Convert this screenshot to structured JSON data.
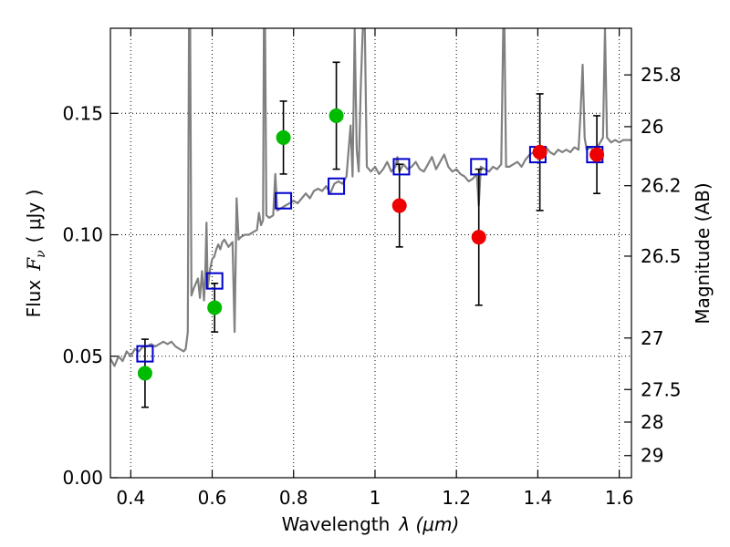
{
  "chart_data": {
    "type": "scatter",
    "xlabel_text": "Wavelength",
    "xlabel_math": "λ (μm)",
    "ylabel_text": "Flux",
    "ylabel_math": "F",
    "ylabel_sub": "ν",
    "ylabel_units": "( μJy )",
    "ylabel_right": "Magnitude (AB)",
    "xlim": [
      0.35,
      1.63
    ],
    "ylim": [
      0.0,
      0.185
    ],
    "grid": true,
    "x_ticks": [
      {
        "v": 0.4,
        "label": "0.4"
      },
      {
        "v": 0.6,
        "label": "0.6"
      },
      {
        "v": 0.8,
        "label": "0.8"
      },
      {
        "v": 1.0,
        "label": "1"
      },
      {
        "v": 1.2,
        "label": "1.2"
      },
      {
        "v": 1.4,
        "label": "1.4"
      },
      {
        "v": 1.6,
        "label": "1.6"
      }
    ],
    "y_ticks": [
      {
        "v": 0.0,
        "label": "0.00"
      },
      {
        "v": 0.05,
        "label": "0.05"
      },
      {
        "v": 0.1,
        "label": "0.10"
      },
      {
        "v": 0.15,
        "label": "0.15"
      }
    ],
    "mag_ticks": [
      {
        "flux": 0.1658,
        "label": "25.8"
      },
      {
        "flux": 0.1445,
        "label": "26"
      },
      {
        "flux": 0.1202,
        "label": "26.2"
      },
      {
        "flux": 0.0912,
        "label": "26.5"
      },
      {
        "flux": 0.0575,
        "label": "27"
      },
      {
        "flux": 0.0363,
        "label": "27.5"
      },
      {
        "flux": 0.0229,
        "label": "28"
      },
      {
        "flux": 0.0091,
        "label": "29"
      }
    ],
    "colors": {
      "spectrum": "#808080",
      "model_box": "#0000cc",
      "green": "#00bb00",
      "red": "#ee0000",
      "errorbar": "#000000"
    },
    "observed": [
      {
        "x": 0.435,
        "y": 0.043,
        "err": 0.014,
        "color": "green"
      },
      {
        "x": 0.606,
        "y": 0.07,
        "err": 0.01,
        "color": "green"
      },
      {
        "x": 0.775,
        "y": 0.14,
        "err": 0.015,
        "color": "green"
      },
      {
        "x": 0.905,
        "y": 0.149,
        "err": 0.022,
        "color": "green"
      },
      {
        "x": 1.06,
        "y": 0.112,
        "err": 0.017,
        "color": "red"
      },
      {
        "x": 1.255,
        "y": 0.099,
        "err": 0.028,
        "color": "red"
      },
      {
        "x": 1.405,
        "y": 0.134,
        "err": 0.024,
        "color": "red"
      },
      {
        "x": 1.545,
        "y": 0.133,
        "err": 0.016,
        "color": "red"
      }
    ],
    "model_photometry": [
      {
        "x": 0.435,
        "y": 0.051
      },
      {
        "x": 0.606,
        "y": 0.081
      },
      {
        "x": 0.775,
        "y": 0.114
      },
      {
        "x": 0.905,
        "y": 0.12
      },
      {
        "x": 1.065,
        "y": 0.128
      },
      {
        "x": 1.255,
        "y": 0.128
      },
      {
        "x": 1.4,
        "y": 0.133
      },
      {
        "x": 1.54,
        "y": 0.133
      }
    ],
    "spectrum": [
      [
        0.35,
        0.049
      ],
      [
        0.36,
        0.046
      ],
      [
        0.37,
        0.05
      ],
      [
        0.38,
        0.048
      ],
      [
        0.39,
        0.052
      ],
      [
        0.4,
        0.05
      ],
      [
        0.41,
        0.053
      ],
      [
        0.42,
        0.052
      ],
      [
        0.43,
        0.054
      ],
      [
        0.44,
        0.054
      ],
      [
        0.45,
        0.055
      ],
      [
        0.46,
        0.054
      ],
      [
        0.47,
        0.055
      ],
      [
        0.48,
        0.056
      ],
      [
        0.49,
        0.055
      ],
      [
        0.5,
        0.056
      ],
      [
        0.51,
        0.054
      ],
      [
        0.52,
        0.053
      ],
      [
        0.53,
        0.052
      ],
      [
        0.535,
        0.053
      ],
      [
        0.54,
        0.06
      ],
      [
        0.543,
        0.185
      ],
      [
        0.546,
        0.185
      ],
      [
        0.549,
        0.075
      ],
      [
        0.555,
        0.078
      ],
      [
        0.56,
        0.08
      ],
      [
        0.565,
        0.082
      ],
      [
        0.57,
        0.074
      ],
      [
        0.575,
        0.085
      ],
      [
        0.58,
        0.073
      ],
      [
        0.583,
        0.083
      ],
      [
        0.586,
        0.105
      ],
      [
        0.589,
        0.078
      ],
      [
        0.595,
        0.086
      ],
      [
        0.6,
        0.09
      ],
      [
        0.605,
        0.091
      ],
      [
        0.61,
        0.094
      ],
      [
        0.615,
        0.096
      ],
      [
        0.62,
        0.094
      ],
      [
        0.625,
        0.097
      ],
      [
        0.63,
        0.098
      ],
      [
        0.64,
        0.095
      ],
      [
        0.65,
        0.097
      ],
      [
        0.655,
        0.06
      ],
      [
        0.66,
        0.115
      ],
      [
        0.665,
        0.098
      ],
      [
        0.67,
        0.099
      ],
      [
        0.68,
        0.1
      ],
      [
        0.69,
        0.1
      ],
      [
        0.7,
        0.101
      ],
      [
        0.71,
        0.102
      ],
      [
        0.715,
        0.109
      ],
      [
        0.72,
        0.104
      ],
      [
        0.725,
        0.106
      ],
      [
        0.727,
        0.185
      ],
      [
        0.73,
        0.185
      ],
      [
        0.733,
        0.108
      ],
      [
        0.74,
        0.107
      ],
      [
        0.75,
        0.108
      ],
      [
        0.755,
        0.125
      ],
      [
        0.76,
        0.11
      ],
      [
        0.77,
        0.111
      ],
      [
        0.78,
        0.112
      ],
      [
        0.79,
        0.113
      ],
      [
        0.8,
        0.114
      ],
      [
        0.81,
        0.113
      ],
      [
        0.82,
        0.115
      ],
      [
        0.83,
        0.117
      ],
      [
        0.84,
        0.115
      ],
      [
        0.85,
        0.118
      ],
      [
        0.86,
        0.119
      ],
      [
        0.87,
        0.118
      ],
      [
        0.88,
        0.12
      ],
      [
        0.89,
        0.117
      ],
      [
        0.9,
        0.121
      ],
      [
        0.91,
        0.122
      ],
      [
        0.92,
        0.121
      ],
      [
        0.93,
        0.124
      ],
      [
        0.94,
        0.145
      ],
      [
        0.945,
        0.124
      ],
      [
        0.95,
        0.185
      ],
      [
        0.955,
        0.135
      ],
      [
        0.96,
        0.126
      ],
      [
        0.965,
        0.16
      ],
      [
        0.97,
        0.185
      ],
      [
        0.975,
        0.185
      ],
      [
        0.98,
        0.128
      ],
      [
        0.99,
        0.126
      ],
      [
        1.0,
        0.128
      ],
      [
        1.01,
        0.125
      ],
      [
        1.02,
        0.127
      ],
      [
        1.03,
        0.13
      ],
      [
        1.04,
        0.126
      ],
      [
        1.05,
        0.128
      ],
      [
        1.055,
        0.132
      ],
      [
        1.06,
        0.126
      ],
      [
        1.07,
        0.129
      ],
      [
        1.08,
        0.127
      ],
      [
        1.09,
        0.128
      ],
      [
        1.1,
        0.13
      ],
      [
        1.11,
        0.127
      ],
      [
        1.12,
        0.126
      ],
      [
        1.13,
        0.129
      ],
      [
        1.14,
        0.132
      ],
      [
        1.15,
        0.127
      ],
      [
        1.16,
        0.13
      ],
      [
        1.17,
        0.133
      ],
      [
        1.18,
        0.128
      ],
      [
        1.19,
        0.126
      ],
      [
        1.2,
        0.127
      ],
      [
        1.21,
        0.125
      ],
      [
        1.22,
        0.124
      ],
      [
        1.23,
        0.122
      ],
      [
        1.24,
        0.123
      ],
      [
        1.25,
        0.125
      ],
      [
        1.255,
        0.112
      ],
      [
        1.26,
        0.128
      ],
      [
        1.27,
        0.127
      ],
      [
        1.28,
        0.126
      ],
      [
        1.29,
        0.128
      ],
      [
        1.3,
        0.127
      ],
      [
        1.31,
        0.129
      ],
      [
        1.315,
        0.185
      ],
      [
        1.318,
        0.185
      ],
      [
        1.322,
        0.128
      ],
      [
        1.33,
        0.128
      ],
      [
        1.34,
        0.129
      ],
      [
        1.35,
        0.13
      ],
      [
        1.36,
        0.128
      ],
      [
        1.37,
        0.131
      ],
      [
        1.38,
        0.133
      ],
      [
        1.39,
        0.134
      ],
      [
        1.4,
        0.132
      ],
      [
        1.41,
        0.134
      ],
      [
        1.42,
        0.136
      ],
      [
        1.43,
        0.134
      ],
      [
        1.44,
        0.133
      ],
      [
        1.45,
        0.135
      ],
      [
        1.46,
        0.134
      ],
      [
        1.47,
        0.135
      ],
      [
        1.48,
        0.134
      ],
      [
        1.49,
        0.136
      ],
      [
        1.5,
        0.135
      ],
      [
        1.505,
        0.15
      ],
      [
        1.51,
        0.17
      ],
      [
        1.515,
        0.14
      ],
      [
        1.52,
        0.135
      ],
      [
        1.53,
        0.136
      ],
      [
        1.54,
        0.134
      ],
      [
        1.55,
        0.137
      ],
      [
        1.56,
        0.14
      ],
      [
        1.565,
        0.185
      ],
      [
        1.57,
        0.14
      ],
      [
        1.58,
        0.138
      ],
      [
        1.59,
        0.139
      ],
      [
        1.6,
        0.138
      ],
      [
        1.61,
        0.139
      ],
      [
        1.62,
        0.139
      ],
      [
        1.63,
        0.139
      ]
    ]
  }
}
